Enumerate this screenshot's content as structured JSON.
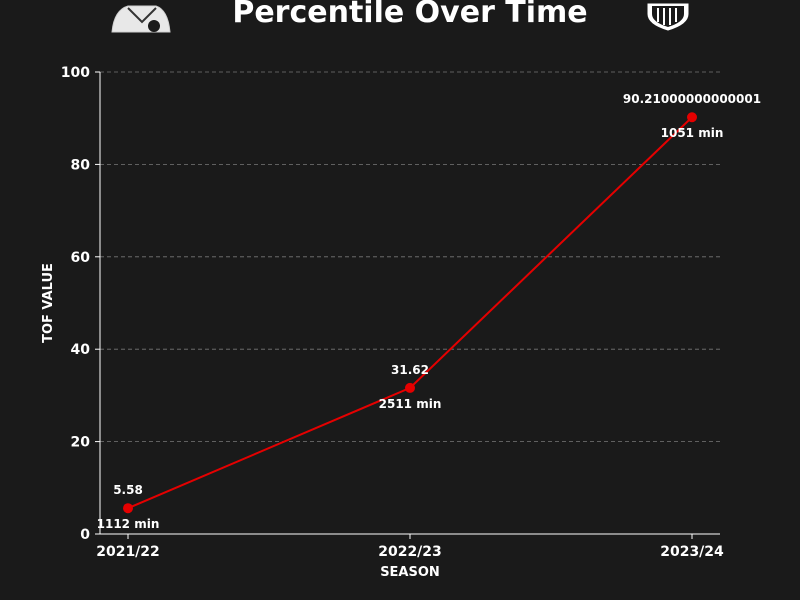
{
  "colors": {
    "background": "#1a1a1a",
    "series": "#e50000",
    "text": "#ffffff",
    "grid": "#777777"
  },
  "icons": {
    "left": "player-avatar-icon",
    "right": "club-crest-icon"
  },
  "chart_data": {
    "type": "line",
    "title": "Percentile Over Time",
    "xlabel": "SEASON",
    "ylabel": "TOF VALUE",
    "categories": [
      "2021/22",
      "2022/23",
      "2023/24"
    ],
    "ylim": [
      0,
      100
    ],
    "yticks": [
      0,
      20,
      40,
      60,
      80,
      100
    ],
    "grid": true,
    "series": [
      {
        "values": [
          5.58,
          31.62,
          90.21
        ],
        "value_labels": [
          "5.58",
          "31.62",
          "90.21000000000001"
        ],
        "minute_labels": [
          "1112 min",
          "2511 min",
          "1051 min"
        ]
      }
    ]
  }
}
